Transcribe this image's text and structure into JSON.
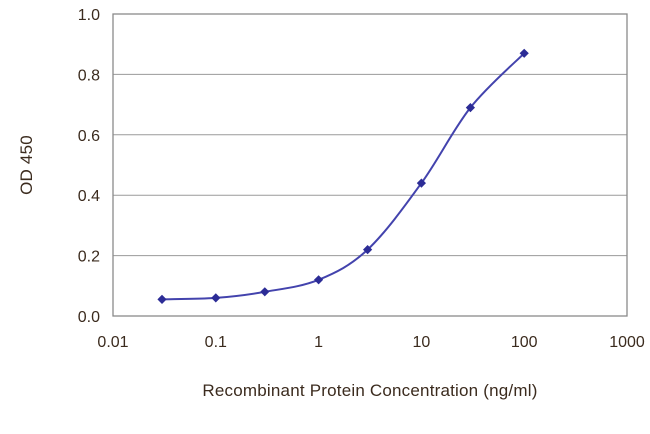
{
  "chart_data": {
    "type": "line",
    "title": "",
    "xlabel": "Recombinant Protein Concentration (ng/ml)",
    "ylabel": "OD 450",
    "x_scale": "log",
    "xlim": [
      0.01,
      1000
    ],
    "ylim": [
      0,
      1.0
    ],
    "x_ticks": [
      0.01,
      0.1,
      1,
      10,
      100,
      1000
    ],
    "x_tick_labels": [
      "0.01",
      "0.1",
      "1",
      "10",
      "100",
      "1000"
    ],
    "y_ticks": [
      0.0,
      0.2,
      0.4,
      0.6,
      0.8,
      1.0
    ],
    "y_tick_labels": [
      "0.0",
      "0.2",
      "0.4",
      "0.6",
      "0.8",
      "1.0"
    ],
    "grid": "horizontal",
    "legend": "none",
    "series": [
      {
        "name": "OD 450",
        "x": [
          0.03,
          0.1,
          0.3,
          1,
          3,
          10,
          30,
          100
        ],
        "y": [
          0.055,
          0.06,
          0.08,
          0.12,
          0.22,
          0.44,
          0.69,
          0.87
        ],
        "color": "#4343ad",
        "marker": "diamond",
        "marker_color": "#2c2c96"
      }
    ],
    "colors": {
      "background": "#ffffff",
      "plot_background": "#ffffff",
      "grid_color": "#9a9a9a",
      "border_color": "#8a8a8a",
      "text_color": "#3b2b1e"
    }
  }
}
